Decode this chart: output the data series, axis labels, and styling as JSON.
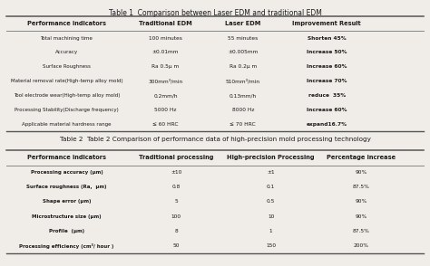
{
  "table1_title": "Table 1  Comparison between Laser EDM and traditional EDM",
  "table1_headers": [
    "Performance indicators",
    "Traditional EDM",
    "Laser EDM",
    "Improvement Result"
  ],
  "table1_rows": [
    [
      "Total machining time",
      "100 minutes",
      "55 minutes",
      "Shorten 45%"
    ],
    [
      "Accuracy",
      "±0.01mm",
      "±0.005mm",
      "Increase 50%"
    ],
    [
      "Surface Roughness",
      "Ra 0.5μ m",
      "Ra 0.2μ m",
      "Increase 60%"
    ],
    [
      "Material removal rate(High-temp alloy mold)",
      "300mm³/min",
      "510mm³/min",
      "Increase 70%"
    ],
    [
      "Tool electrode wear(High-temp alloy mold)",
      "0.2mm/h",
      "0.13mm/h",
      "reduce  35%"
    ],
    [
      "Processing Stability(Discharge frequency)",
      "5000 Hz",
      "8000 Hz",
      "Increase 60%"
    ],
    [
      "Applicable material hardness range",
      "≤ 60 HRC",
      "≤ 70 HRC",
      "expand16.7%"
    ]
  ],
  "table2_title": "Table 2  Table 2 Comparison of performance data of high-precision mold processing technology",
  "table2_headers": [
    "Performance indicators",
    "Traditional processing",
    "High-precision Processing",
    "Percentage increase"
  ],
  "table2_rows": [
    [
      "Processing accuracy (μm)",
      "±10",
      "±1",
      "90%"
    ],
    [
      "Surface roughness (Ra,  μm)",
      "0.8",
      "0.1",
      "87.5%"
    ],
    [
      "Shape error (μm)",
      "5",
      "0.5",
      "90%"
    ],
    [
      "Microstructure size (μm)",
      "100",
      "10",
      "90%"
    ],
    [
      "Profile  (μm)",
      "8",
      "1",
      "87.5%"
    ],
    [
      "Processing efficiency (cm³/ hour )",
      "50",
      "150",
      "200%"
    ]
  ],
  "bg_color": "#f0ede8",
  "text_color": "#1a1a1a",
  "line_color_thick": "#555555",
  "line_color_thin": "#aaaaaa"
}
